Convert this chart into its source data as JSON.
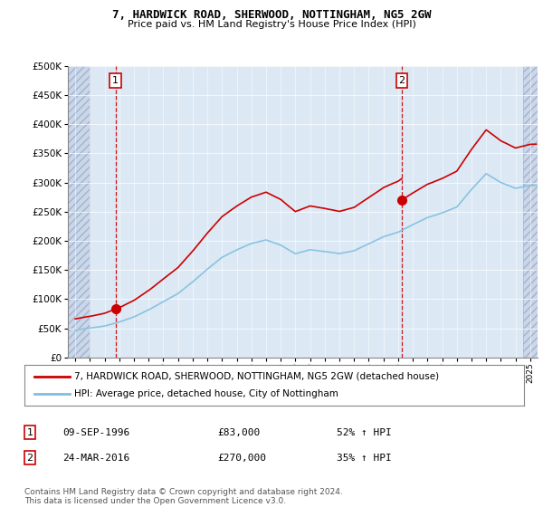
{
  "title": "7, HARDWICK ROAD, SHERWOOD, NOTTINGHAM, NG5 2GW",
  "subtitle": "Price paid vs. HM Land Registry's House Price Index (HPI)",
  "legend_line1": "7, HARDWICK ROAD, SHERWOOD, NOTTINGHAM, NG5 2GW (detached house)",
  "legend_line2": "HPI: Average price, detached house, City of Nottingham",
  "sale1_date": "09-SEP-1996",
  "sale1_price": "£83,000",
  "sale1_hpi": "52% ↑ HPI",
  "sale2_date": "24-MAR-2016",
  "sale2_price": "£270,000",
  "sale2_hpi": "35% ↑ HPI",
  "footnote": "Contains HM Land Registry data © Crown copyright and database right 2024.\nThis data is licensed under the Open Government Licence v3.0.",
  "hpi_color": "#7fbfdf",
  "price_color": "#cc0000",
  "plot_bg_color": "#dce9f5",
  "ylim": [
    0,
    500000
  ],
  "yticks": [
    0,
    50000,
    100000,
    150000,
    200000,
    250000,
    300000,
    350000,
    400000,
    450000,
    500000
  ],
  "sale1_x": 1996.75,
  "sale1_y": 83000,
  "sale2_x": 2016.25,
  "sale2_y": 270000,
  "xmin": 1993.5,
  "xmax": 2025.5,
  "hatch_left_end": 1995.0,
  "hatch_right_start": 2024.5
}
